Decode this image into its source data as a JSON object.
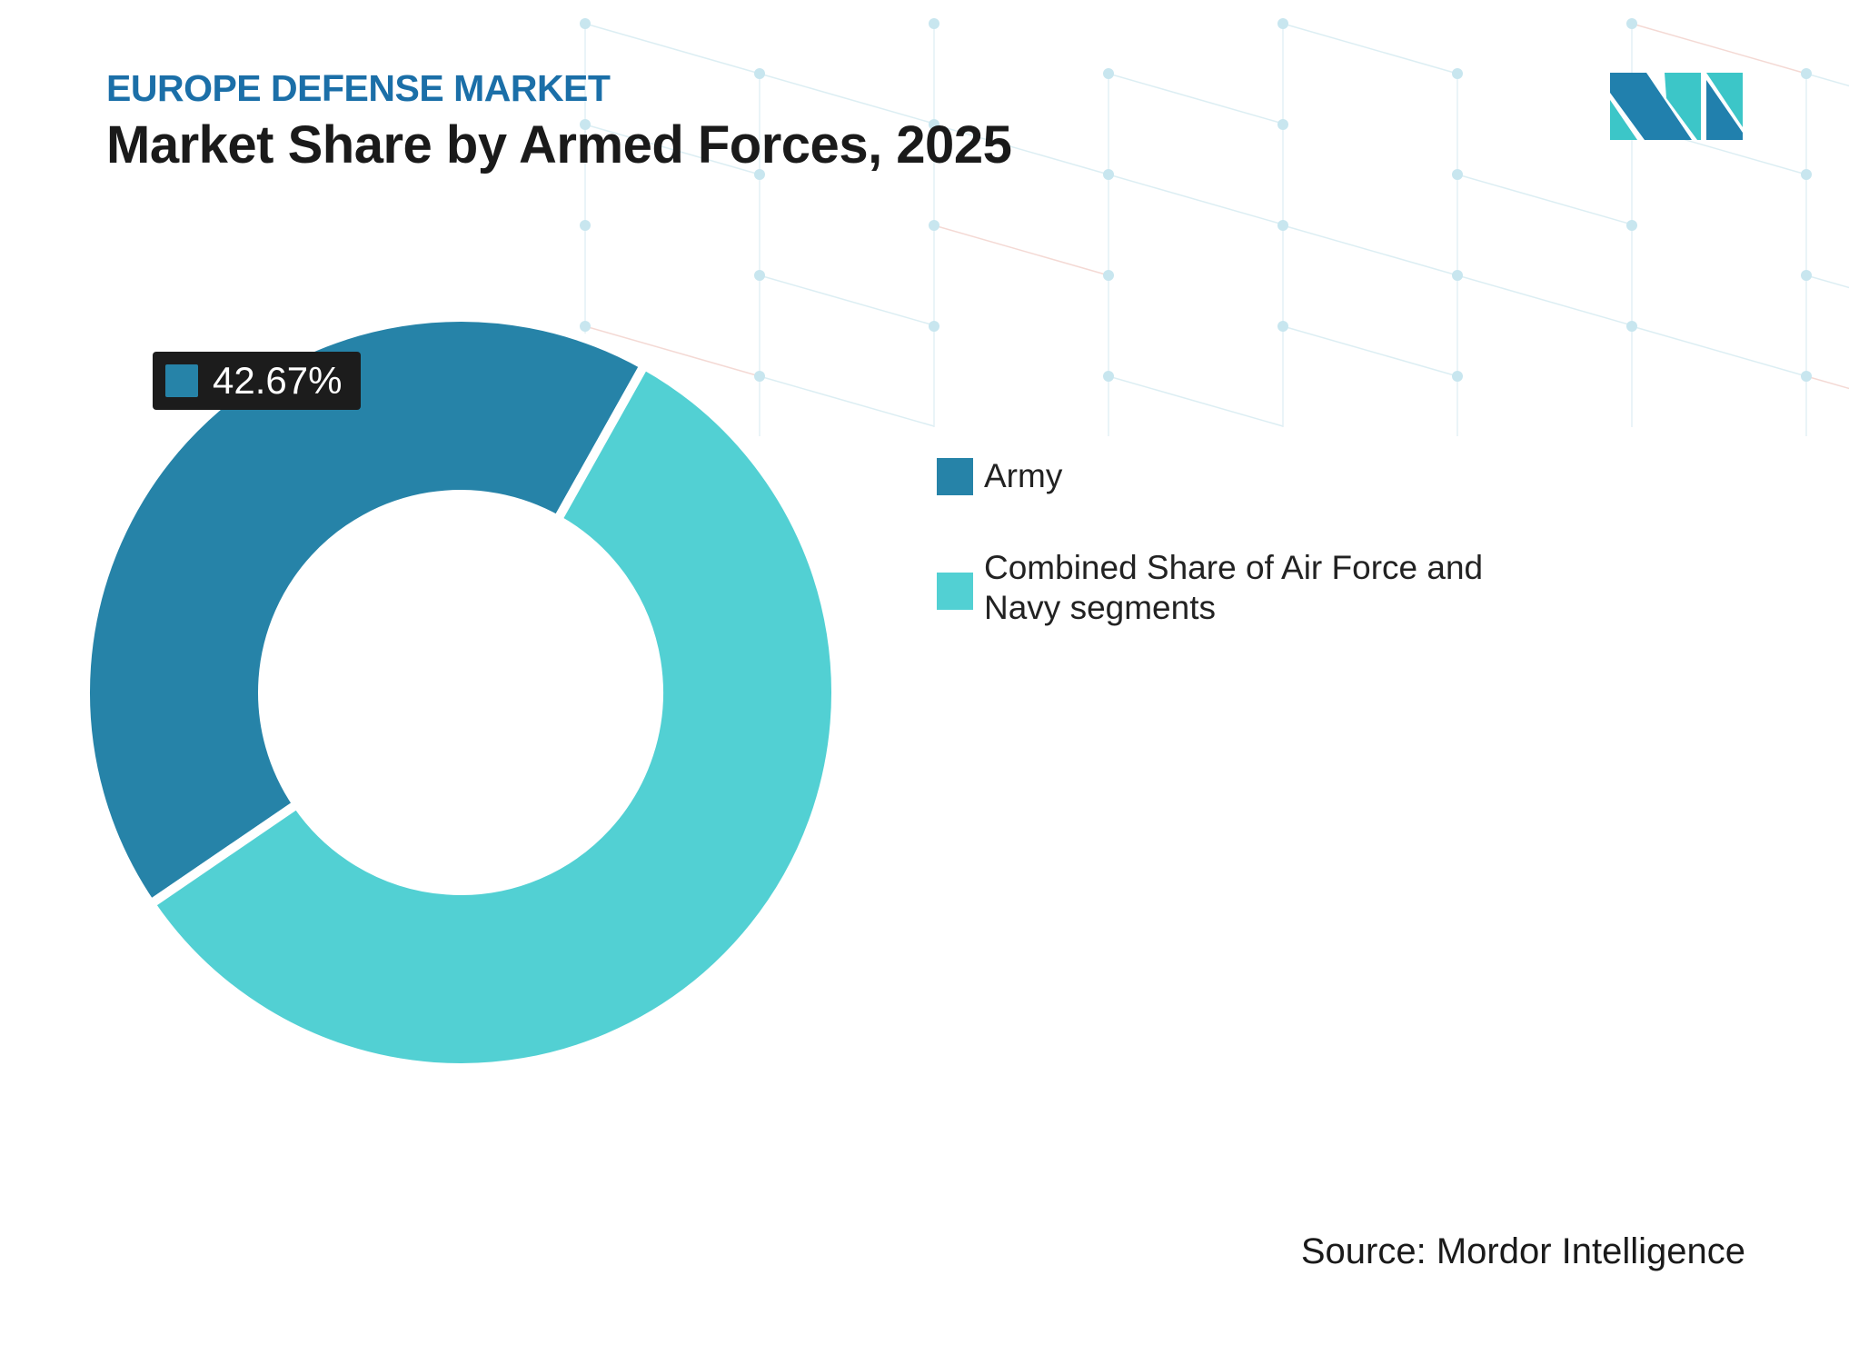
{
  "header": {
    "kicker": "EUROPE DEFENSE MARKET",
    "title": "Market Share by Armed Forces, 2025"
  },
  "logo": {
    "text": "MI",
    "colors": [
      "#2180ad",
      "#3cc6c8"
    ]
  },
  "chart_data": {
    "type": "pie",
    "variant": "donut",
    "title": "Market Share by Armed Forces, 2025",
    "categories": [
      "Army",
      "Combined Share of Air Force and Navy segments"
    ],
    "values": [
      42.67,
      57.33
    ],
    "colors": [
      "#2683a8",
      "#52d0d3"
    ],
    "data_labels": [
      {
        "category": "Army",
        "text": "42.67%"
      }
    ],
    "legend": {
      "placement": "right"
    }
  },
  "footer": {
    "source": "Source: Mordor Intelligence"
  }
}
